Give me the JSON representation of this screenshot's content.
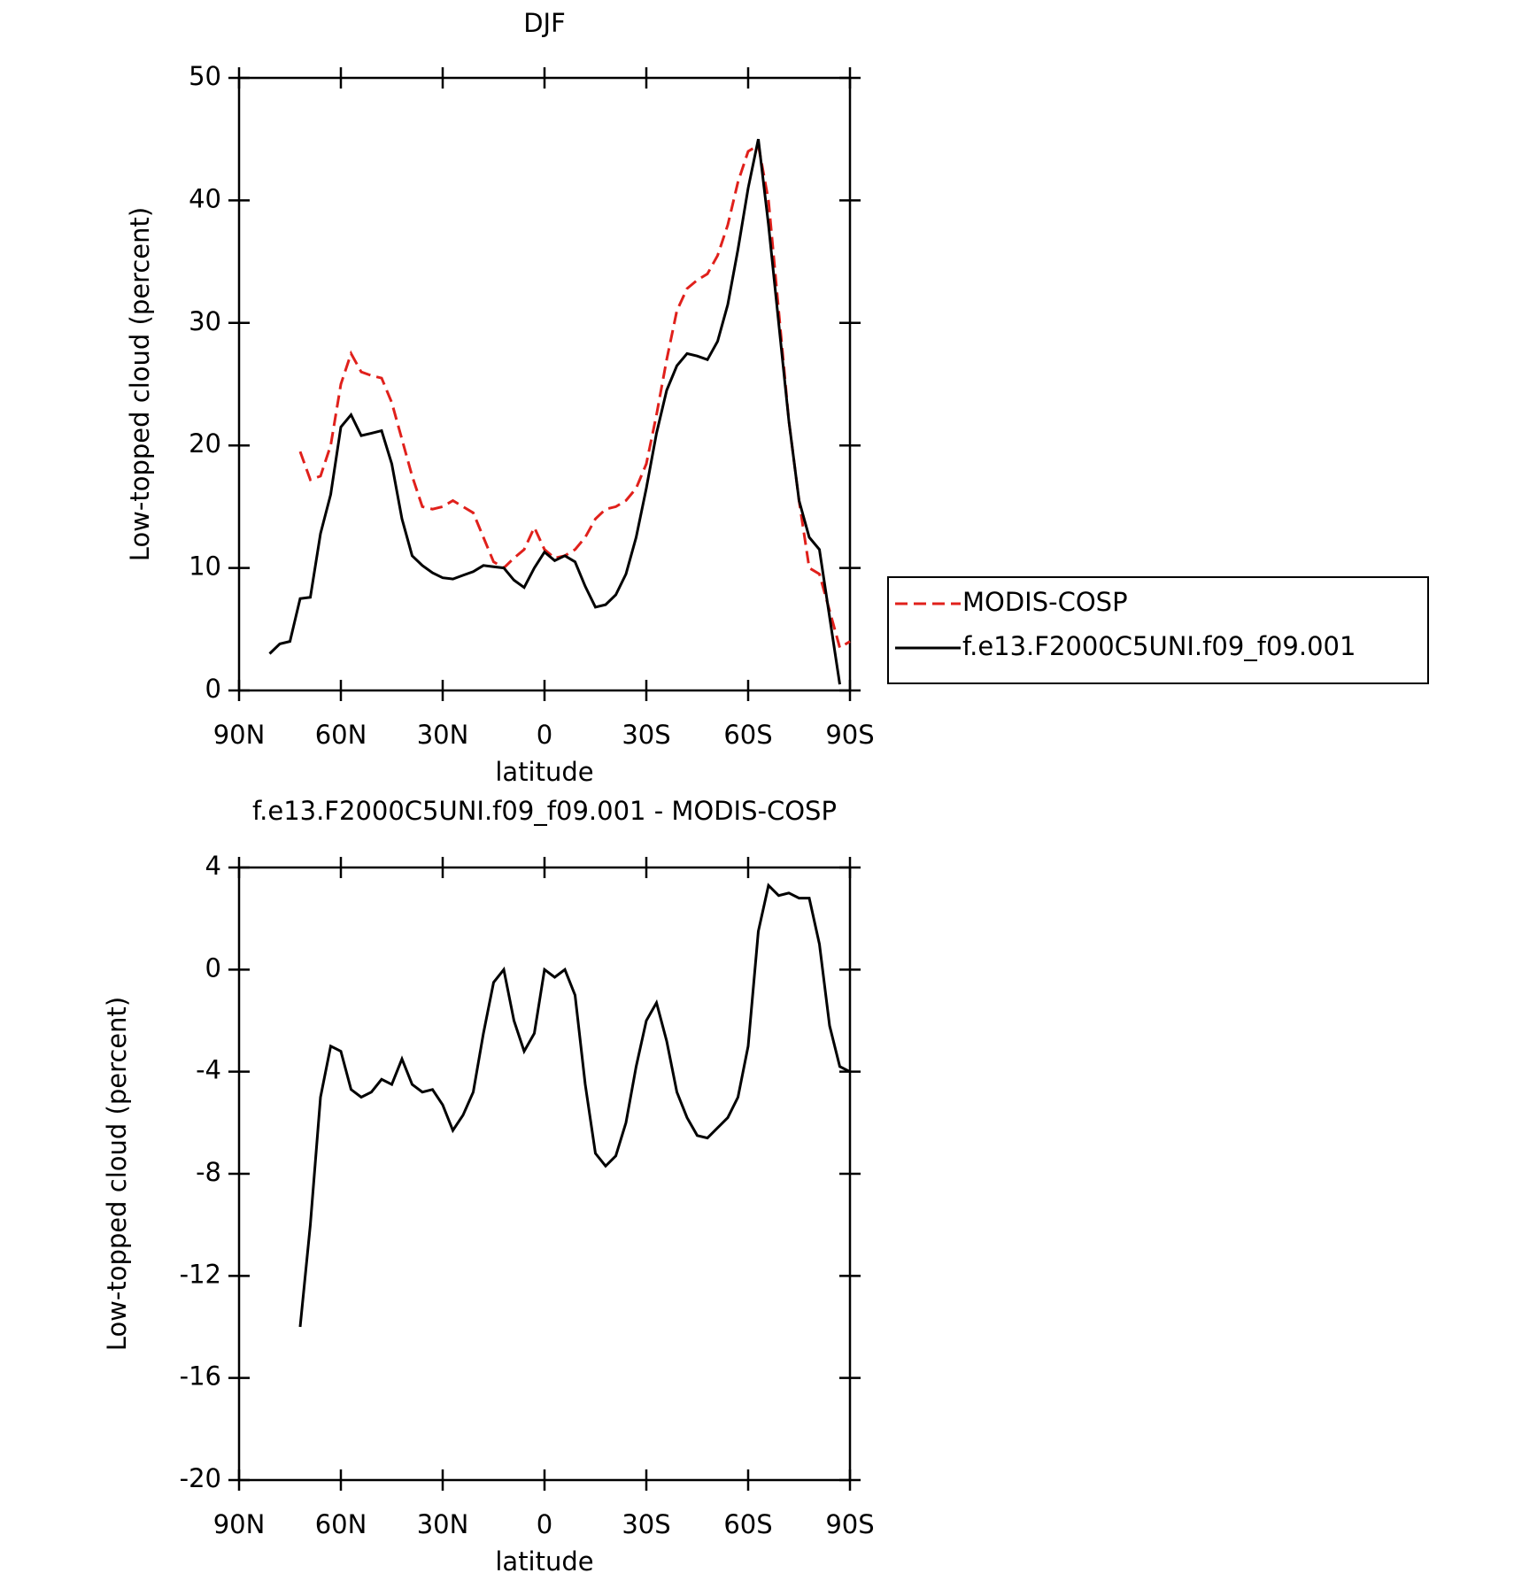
{
  "chart_data": [
    {
      "type": "line",
      "title": "DJF",
      "xlabel": "latitude",
      "ylabel": "Low-topped cloud (percent)",
      "x": [
        81,
        78,
        75,
        72,
        69,
        66,
        63,
        60,
        57,
        54,
        51,
        48,
        45,
        42,
        39,
        36,
        33,
        30,
        27,
        24,
        21,
        18,
        15,
        12,
        9,
        6,
        3,
        0,
        -3,
        -6,
        -9,
        -12,
        -15,
        -18,
        -21,
        -24,
        -27,
        -30,
        -33,
        -36,
        -39,
        -42,
        -45,
        -48,
        -51,
        -54,
        -57,
        -60,
        -63,
        -66,
        -69,
        -72,
        -75,
        -78,
        -81,
        -84,
        -87,
        -90
      ],
      "series": [
        {
          "name": "MODIS-COSP",
          "color": "#e0201b",
          "line_style": "dashed",
          "values": [
            null,
            null,
            null,
            19.5,
            17.2,
            17.5,
            20,
            25,
            27.5,
            26,
            25.7,
            25.5,
            23.5,
            20.5,
            17.5,
            15,
            14.8,
            15,
            15.5,
            15,
            14.5,
            12.5,
            10.5,
            10,
            10.8,
            11.5,
            13.3,
            11.5,
            10.8,
            11,
            11.5,
            12.5,
            14,
            14.8,
            15,
            15.5,
            16.5,
            18.5,
            22.5,
            27,
            31,
            32.8,
            33.5,
            34,
            35.5,
            38,
            41.5,
            44,
            44.5,
            40,
            31,
            22,
            15.5,
            10,
            9.5,
            6.5,
            3.5,
            4
          ]
        },
        {
          "name": "f.e13.F2000C5UNI.f09_f09.001",
          "color": "#000000",
          "line_style": "solid",
          "values": [
            3.0,
            3.8,
            4.0,
            7.5,
            7.6,
            12.8,
            16,
            21.5,
            22.5,
            20.8,
            21,
            21.2,
            18.5,
            14,
            11,
            10.2,
            9.6,
            9.2,
            9.1,
            9.4,
            9.7,
            10.2,
            10.1,
            10,
            9,
            8.4,
            10,
            11.3,
            10.6,
            11,
            10.5,
            8.5,
            6.8,
            7,
            7.8,
            9.5,
            12.5,
            16.5,
            21,
            24.5,
            26.5,
            27.5,
            27.3,
            27,
            28.5,
            31.5,
            36,
            41,
            45,
            38,
            30,
            22,
            15.5,
            12.5,
            11.5,
            6,
            0.5,
            null
          ]
        }
      ],
      "xlim": [
        90,
        -90
      ],
      "xticks": [
        {
          "value": 90,
          "label": "90N"
        },
        {
          "value": 60,
          "label": "60N"
        },
        {
          "value": 30,
          "label": "30N"
        },
        0,
        {
          "value": -30,
          "label": "30S"
        },
        {
          "value": -60,
          "label": "60S"
        },
        {
          "value": -90,
          "label": "90S"
        }
      ],
      "ylim": [
        0,
        50
      ],
      "yticks": [
        0,
        10,
        20,
        30,
        40,
        50
      ],
      "legend": "right"
    },
    {
      "type": "line",
      "title": "f.e13.F2000C5UNI.f09_f09.001 - MODIS-COSP",
      "xlabel": "latitude",
      "ylabel": "Low-topped cloud (percent)",
      "x": [
        72,
        69,
        66,
        63,
        60,
        57,
        54,
        51,
        48,
        45,
        42,
        39,
        36,
        33,
        30,
        27,
        24,
        21,
        18,
        15,
        12,
        9,
        6,
        3,
        0,
        -3,
        -6,
        -9,
        -12,
        -15,
        -18,
        -21,
        -24,
        -27,
        -30,
        -33,
        -36,
        -39,
        -42,
        -45,
        -48,
        -51,
        -54,
        -57,
        -60,
        -63,
        -66,
        -69,
        -72,
        -75,
        -78,
        -81,
        -84,
        -87,
        -90
      ],
      "series": [
        {
          "color": "#000000",
          "line_style": "solid",
          "values": [
            -14,
            -10,
            -5,
            -3,
            -3.2,
            -4.7,
            -5,
            -4.8,
            -4.3,
            -4.5,
            -3.5,
            -4.5,
            -4.8,
            -4.7,
            -5.3,
            -6.3,
            -5.7,
            -4.8,
            -2.5,
            -0.5,
            0,
            -2,
            -3.2,
            -2.5,
            0,
            -0.3,
            0,
            -1,
            -4.5,
            -7.2,
            -7.7,
            -7.3,
            -6,
            -3.8,
            -2,
            -1.3,
            -2.8,
            -4.8,
            -5.8,
            -6.5,
            -6.6,
            -6.2,
            -5.8,
            -5,
            -3,
            1.5,
            3.3,
            2.9,
            3.0,
            2.8,
            2.8,
            1,
            -2.2,
            -3.8,
            -4
          ]
        }
      ],
      "xlim": [
        90,
        -90
      ],
      "xticks": [
        {
          "value": 90,
          "label": "90N"
        },
        {
          "value": 60,
          "label": "60N"
        },
        {
          "value": 30,
          "label": "30N"
        },
        0,
        {
          "value": -30,
          "label": "30S"
        },
        {
          "value": -60,
          "label": "60S"
        },
        {
          "value": -90,
          "label": "90S"
        }
      ],
      "ylim": [
        -20,
        4
      ],
      "yticks": [
        -20,
        -16,
        -12,
        -8,
        -4,
        0,
        4
      ]
    }
  ]
}
